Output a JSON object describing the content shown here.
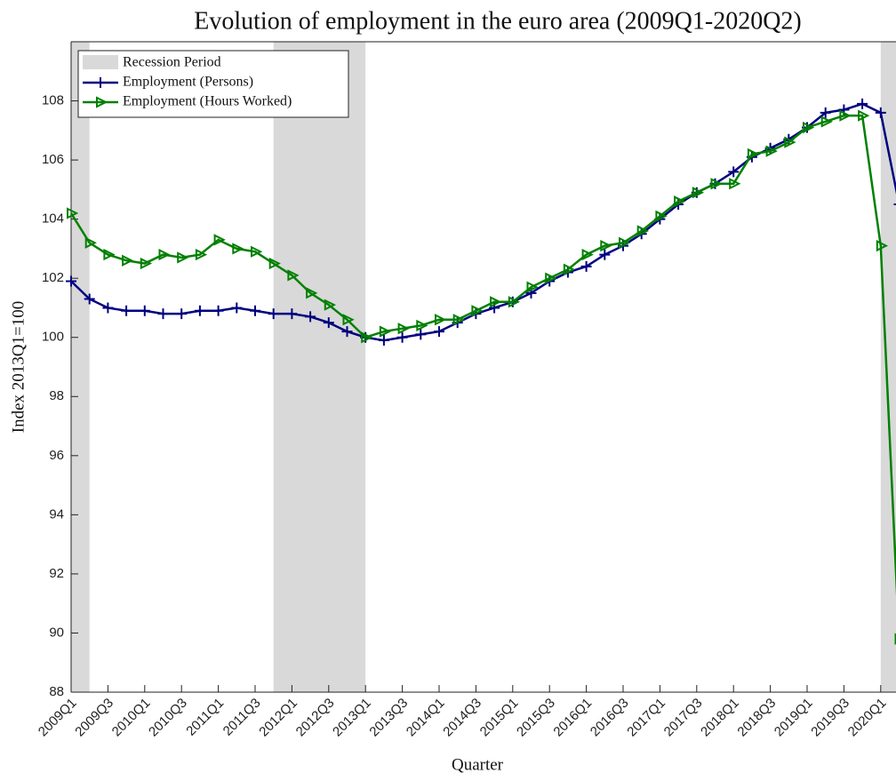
{
  "chart_data": {
    "type": "line",
    "title": "Evolution of employment in the euro area (2009Q1-2020Q2)",
    "x_label": "Quarter",
    "y_label": "Index 2013Q1=100",
    "categories": [
      "2009Q1",
      null,
      "2009Q3",
      null,
      "2010Q1",
      null,
      "2010Q3",
      null,
      "2011Q1",
      null,
      "2011Q3",
      null,
      "2012Q1",
      null,
      "2012Q3",
      null,
      "2013Q1",
      null,
      "2013Q3",
      null,
      "2014Q1",
      null,
      "2014Q3",
      null,
      "2015Q1",
      null,
      "2015Q3",
      null,
      "2016Q1",
      null,
      "2016Q3",
      null,
      "2017Q1",
      null,
      "2017Q3",
      null,
      "2018Q1",
      null,
      "2018Q3",
      null,
      "2019Q1",
      null,
      "2019Q3",
      null,
      "2020Q1",
      null
    ],
    "recession": {
      "name": "Recession Period",
      "color": "#d9d9d9",
      "periods": [
        [
          0,
          1
        ],
        [
          11,
          16
        ],
        [
          44,
          45
        ]
      ]
    },
    "series": [
      {
        "name": "Employment (Persons)",
        "color": "#000080",
        "marker": "plus",
        "values": [
          101.9,
          101.3,
          101.0,
          100.9,
          100.9,
          100.8,
          100.8,
          100.9,
          100.9,
          101.0,
          100.9,
          100.8,
          100.8,
          100.7,
          100.5,
          100.2,
          100.0,
          99.9,
          100.0,
          100.1,
          100.2,
          100.5,
          100.8,
          101.0,
          101.2,
          101.5,
          101.9,
          102.2,
          102.4,
          102.8,
          103.1,
          103.5,
          104.0,
          104.5,
          104.9,
          105.2,
          105.6,
          106.1,
          106.4,
          106.7,
          107.1,
          107.6,
          107.7,
          107.9,
          107.6,
          104.5
        ]
      },
      {
        "name": "Employment (Hours Worked)",
        "color": "#008000",
        "marker": "triangle-right",
        "values": [
          104.2,
          103.2,
          102.8,
          102.6,
          102.5,
          102.8,
          102.7,
          102.8,
          103.3,
          103.0,
          102.9,
          102.5,
          102.1,
          101.5,
          101.1,
          100.6,
          100.0,
          100.2,
          100.3,
          100.4,
          100.6,
          100.6,
          100.9,
          101.2,
          101.2,
          101.7,
          102.0,
          102.3,
          102.8,
          103.1,
          103.2,
          103.6,
          104.1,
          104.6,
          104.9,
          105.2,
          105.2,
          106.2,
          106.3,
          106.6,
          107.1,
          107.3,
          107.5,
          107.5,
          103.1,
          89.8
        ]
      }
    ],
    "ylim": [
      88,
      110
    ],
    "yticks": [
      88,
      90,
      92,
      94,
      96,
      98,
      100,
      102,
      104,
      106,
      108
    ],
    "grid": false
  }
}
